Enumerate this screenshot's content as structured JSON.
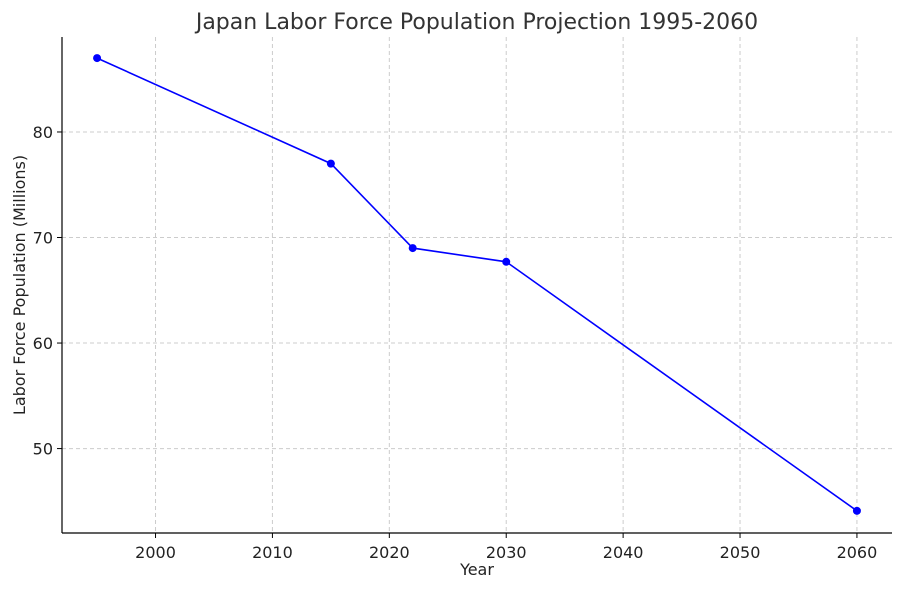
{
  "chart_data": {
    "type": "line",
    "title": "Japan Labor Force Population Projection 1995-2060",
    "xlabel": "Year",
    "ylabel": "Labor Force Population (Millions)",
    "xlim": [
      1992,
      2063
    ],
    "ylim": [
      42,
      89
    ],
    "xticks": [
      2000,
      2010,
      2020,
      2030,
      2040,
      2050,
      2060
    ],
    "yticks": [
      50,
      60,
      70,
      80
    ],
    "grid": true,
    "series": [
      {
        "color": "#0000ff",
        "marker": "circle",
        "x": [
          1995,
          2015,
          2022,
          2030,
          2060
        ],
        "y": [
          87,
          77,
          69,
          67.7,
          44.1
        ]
      }
    ]
  }
}
